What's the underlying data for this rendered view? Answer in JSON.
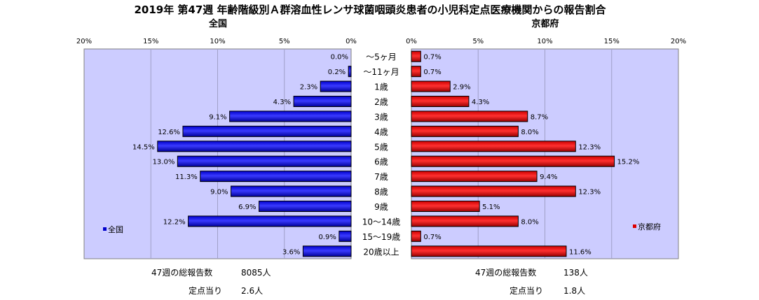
{
  "chart_data": {
    "type": "bar",
    "title": "2019年 第47週 年齢階級別Ａ群溶血性レンサ球菌咽頭炎患者の小児科定点医療機関からの報告割合",
    "categories": [
      "～5ヶ月",
      "～11ヶ月",
      "1歳",
      "2歳",
      "3歳",
      "4歳",
      "5歳",
      "6歳",
      "7歳",
      "8歳",
      "9歳",
      "10～14歳",
      "15～19歳",
      "20歳以上"
    ],
    "xlim": [
      0,
      20
    ],
    "ticks": [
      "0%",
      "5%",
      "10%",
      "15%",
      "20%"
    ],
    "left_ticks": [
      "20%",
      "15%",
      "10%",
      "5%",
      "0%"
    ],
    "series": [
      {
        "name": "全国",
        "side": "left",
        "subtitle": "全国",
        "color": "#0000cc",
        "values": [
          0.0,
          0.2,
          2.3,
          4.3,
          9.1,
          12.6,
          14.5,
          13.0,
          11.3,
          9.0,
          6.9,
          12.2,
          0.9,
          3.6
        ],
        "labels": [
          "0.0%",
          "0.2%",
          "2.3%",
          "4.3%",
          "9.1%",
          "12.6%",
          "14.5%",
          "13.0%",
          "11.3%",
          "9.0%",
          "6.9%",
          "12.2%",
          "0.9%",
          "3.6%"
        ]
      },
      {
        "name": "京都府",
        "side": "right",
        "subtitle": "京都府",
        "color": "#dd0000",
        "values": [
          0.7,
          0.7,
          2.9,
          4.3,
          8.7,
          8.0,
          12.3,
          15.2,
          9.4,
          12.3,
          5.1,
          8.0,
          0.7,
          11.6
        ],
        "labels": [
          "0.7%",
          "0.7%",
          "2.9%",
          "4.3%",
          "8.7%",
          "8.0%",
          "12.3%",
          "15.2%",
          "9.4%",
          "12.3%",
          "5.1%",
          "8.0%",
          "0.7%",
          "11.6%"
        ]
      }
    ],
    "legend": {
      "left": "全国",
      "right": "京都府"
    },
    "grid": true
  },
  "footer": {
    "left": {
      "total_label": "47週の総報告数",
      "total_value": "8085人",
      "per_label": "定点当り",
      "per_value": "2.6人"
    },
    "right": {
      "total_label": "47週の総報告数",
      "total_value": "138人",
      "per_label": "定点当り",
      "per_value": "1.8人"
    }
  },
  "colors": {
    "plot_bg": "#ccccff",
    "grid": "#a0a0c8",
    "bar_left": "#0000cc",
    "bar_right": "#dd0000"
  }
}
